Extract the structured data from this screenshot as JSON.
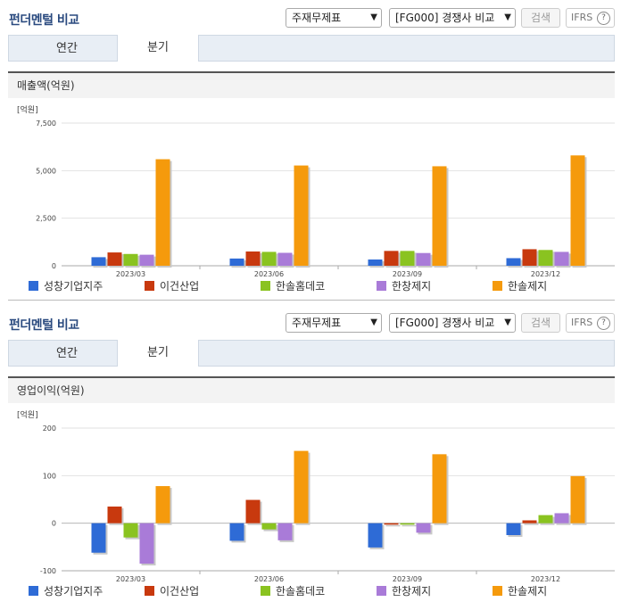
{
  "header": {
    "title": "펀더멘털 비교",
    "select_report": "주재무제표",
    "select_compare": "[FG000] 경쟁사 비교",
    "search_label": "검색",
    "ifrs_label": "IFRS",
    "help_glyph": "?"
  },
  "tabs": [
    {
      "label": "연간",
      "active": false
    },
    {
      "label": "분기",
      "active": true
    }
  ],
  "legend": [
    {
      "name": "성창기업지주",
      "color": "#2e6bd6"
    },
    {
      "name": "이건산업",
      "color": "#c8390e"
    },
    {
      "name": "한솔홈데코",
      "color": "#8ac320"
    },
    {
      "name": "한창제지",
      "color": "#a97bd8"
    },
    {
      "name": "한솔제지",
      "color": "#f59a0c"
    }
  ],
  "charts": [
    {
      "header": "매출액(억원)"
    },
    {
      "header": "영업이익(억원)"
    }
  ],
  "chart_data": [
    {
      "type": "bar",
      "title": "매출액(억원)",
      "unit_label": "[억원]",
      "categories": [
        "2023/03",
        "2023/06",
        "2023/09",
        "2023/12"
      ],
      "ylim": [
        0,
        7500
      ],
      "yticks": [
        0,
        2500,
        5000,
        7500
      ],
      "ytick_labels": [
        "0",
        "2,500",
        "5,000",
        "7,500"
      ],
      "grid": true,
      "legend_position": "bottom",
      "series": [
        {
          "name": "성창기업지주",
          "values": [
            450,
            380,
            330,
            400
          ]
        },
        {
          "name": "이건산업",
          "values": [
            700,
            750,
            780,
            870
          ]
        },
        {
          "name": "한솔홈데코",
          "values": [
            620,
            730,
            780,
            830
          ]
        },
        {
          "name": "한창제지",
          "values": [
            580,
            680,
            670,
            730
          ]
        },
        {
          "name": "한솔제지",
          "values": [
            5600,
            5270,
            5230,
            5800
          ]
        }
      ]
    },
    {
      "type": "bar",
      "title": "영업이익(억원)",
      "unit_label": "[억원]",
      "categories": [
        "2023/03",
        "2023/06",
        "2023/09",
        "2023/12"
      ],
      "ylim": [
        -100,
        200
      ],
      "yticks": [
        -100,
        0,
        100,
        200
      ],
      "ytick_labels": [
        "-100",
        "0",
        "100",
        "200"
      ],
      "grid": true,
      "legend_position": "bottom",
      "series": [
        {
          "name": "성창기업지주",
          "values": [
            -62,
            -37,
            -51,
            -25
          ]
        },
        {
          "name": "이건산업",
          "values": [
            35,
            49,
            -3,
            6
          ]
        },
        {
          "name": "한솔홈데코",
          "values": [
            -30,
            -13,
            -3,
            17
          ]
        },
        {
          "name": "한창제지",
          "values": [
            -85,
            -36,
            -20,
            21
          ]
        },
        {
          "name": "한솔제지",
          "values": [
            78,
            152,
            145,
            99
          ]
        }
      ]
    }
  ]
}
